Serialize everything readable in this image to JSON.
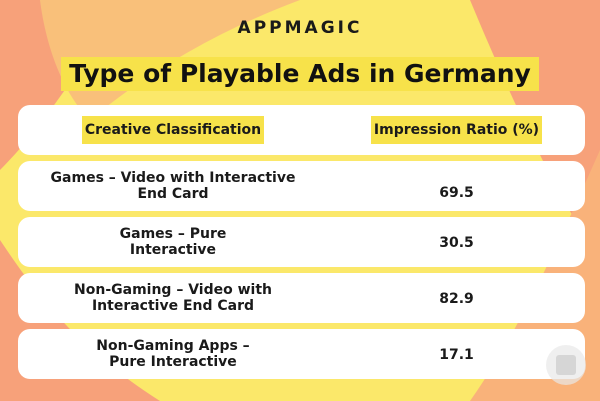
{
  "brand": "APPMAGIC",
  "title": "Type of Playable Ads in Germany",
  "colors": {
    "background": "#fbe86a",
    "accent": "#f7a17a",
    "highlight": "#f7e24a",
    "row": "#ffffff"
  },
  "chart_data": {
    "type": "table",
    "title": "Type of Playable Ads in Germany",
    "columns": [
      "Creative Classification",
      "Impression Ratio (%)"
    ],
    "rows": [
      {
        "label": "Games – Video with Interactive End Card",
        "value": 69.5
      },
      {
        "label": "Games – Pure Interactive",
        "value": 30.5
      },
      {
        "label": "Non-Gaming – Video with Interactive End Card",
        "value": 82.9
      },
      {
        "label": "Non-Gaming Apps – Pure Interactive",
        "value": 17.1
      }
    ]
  }
}
